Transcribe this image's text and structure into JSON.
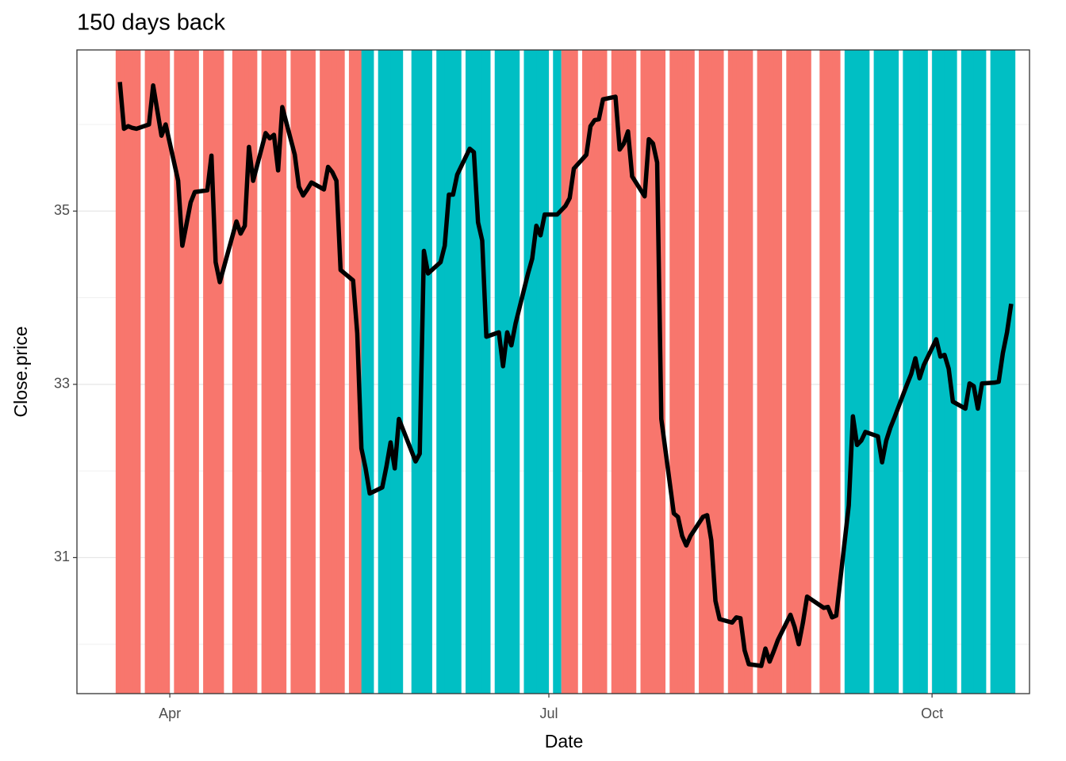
{
  "chart_data": {
    "type": "line",
    "title": "150 days back",
    "xlabel": "Date",
    "ylabel": "Close.price",
    "x": [
      79,
      80,
      81,
      82,
      83,
      86,
      87,
      88,
      89,
      90,
      93,
      94,
      95,
      96,
      97,
      100,
      101,
      102,
      103,
      107,
      108,
      109,
      110,
      111,
      114,
      115,
      116,
      117,
      118,
      121,
      122,
      123,
      124,
      125,
      128,
      129,
      130,
      131,
      132,
      135,
      136,
      137,
      138,
      139,
      142,
      143,
      144,
      145,
      146,
      150,
      151,
      152,
      153,
      156,
      157,
      158,
      159,
      160,
      163,
      164,
      165,
      166,
      167,
      170,
      171,
      172,
      173,
      174,
      177,
      178,
      179,
      180,
      181,
      184,
      186,
      187,
      188,
      191,
      192,
      193,
      194,
      195,
      198,
      199,
      200,
      201,
      202,
      205,
      206,
      207,
      208,
      209,
      212,
      213,
      214,
      215,
      216,
      219,
      220,
      221,
      222,
      223,
      226,
      227,
      228,
      229,
      230,
      233,
      234,
      235,
      236,
      237,
      240,
      241,
      242,
      243,
      244,
      248,
      249,
      250,
      251,
      254,
      255,
      256,
      257,
      258,
      261,
      262,
      263,
      264,
      265,
      268,
      269,
      270,
      271,
      272,
      275,
      276,
      277,
      278,
      279,
      282,
      283,
      284,
      285,
      286,
      289,
      290,
      291,
      292,
      293
    ],
    "values": [
      36.49,
      35.95,
      35.98,
      35.96,
      35.95,
      36.0,
      36.45,
      36.16,
      35.87,
      36.0,
      35.35,
      34.6,
      34.85,
      35.1,
      35.22,
      35.24,
      35.64,
      34.41,
      34.18,
      34.88,
      34.74,
      34.83,
      35.74,
      35.35,
      35.9,
      35.84,
      35.88,
      35.47,
      36.2,
      35.65,
      35.28,
      35.18,
      35.25,
      35.33,
      35.25,
      35.51,
      35.45,
      35.35,
      34.32,
      34.2,
      33.59,
      32.26,
      32.03,
      31.74,
      31.81,
      32.05,
      32.33,
      32.03,
      32.6,
      32.11,
      32.2,
      34.54,
      34.28,
      34.41,
      34.6,
      35.19,
      35.19,
      35.42,
      35.72,
      35.68,
      34.87,
      34.66,
      33.55,
      33.6,
      33.21,
      33.6,
      33.45,
      33.7,
      34.28,
      34.45,
      34.83,
      34.72,
      34.96,
      34.96,
      35.06,
      35.15,
      35.49,
      35.65,
      35.98,
      36.05,
      36.06,
      36.29,
      36.32,
      35.71,
      35.78,
      35.92,
      35.4,
      35.17,
      35.83,
      35.78,
      35.56,
      32.6,
      31.51,
      31.47,
      31.25,
      31.14,
      31.25,
      31.47,
      31.49,
      31.2,
      30.5,
      30.29,
      30.25,
      30.31,
      30.3,
      29.93,
      29.77,
      29.75,
      29.95,
      29.8,
      29.92,
      30.05,
      30.34,
      30.2,
      30.0,
      30.25,
      30.55,
      30.42,
      30.43,
      30.31,
      30.33,
      31.6,
      32.63,
      32.3,
      32.35,
      32.45,
      32.4,
      32.1,
      32.35,
      32.5,
      32.62,
      33.0,
      33.12,
      33.3,
      33.07,
      33.22,
      33.52,
      33.32,
      33.34,
      33.18,
      32.8,
      32.72,
      33.01,
      32.98,
      32.72,
      33.01,
      33.02,
      33.03,
      33.36,
      33.6,
      33.93
    ],
    "color": "#000000",
    "bands": [
      {
        "start": 79,
        "end": 137,
        "color": "#F8766D"
      },
      {
        "start": 138,
        "end": 184,
        "color": "#00BFC4"
      },
      {
        "start": 186,
        "end": 251,
        "color": "#F8766D"
      },
      {
        "start": 254,
        "end": 293,
        "color": "#00BFC4"
      }
    ],
    "xlim": [
      68.7,
      297.4
    ],
    "xticks": [
      {
        "value": 91,
        "label": "Apr"
      },
      {
        "value": 182,
        "label": "Jul"
      },
      {
        "value": 274,
        "label": "Oct"
      }
    ],
    "ylim": [
      29.43,
      36.86
    ],
    "yticks": [
      31,
      33,
      35
    ],
    "yminor": [
      30,
      32,
      34,
      36
    ],
    "grid": true
  }
}
